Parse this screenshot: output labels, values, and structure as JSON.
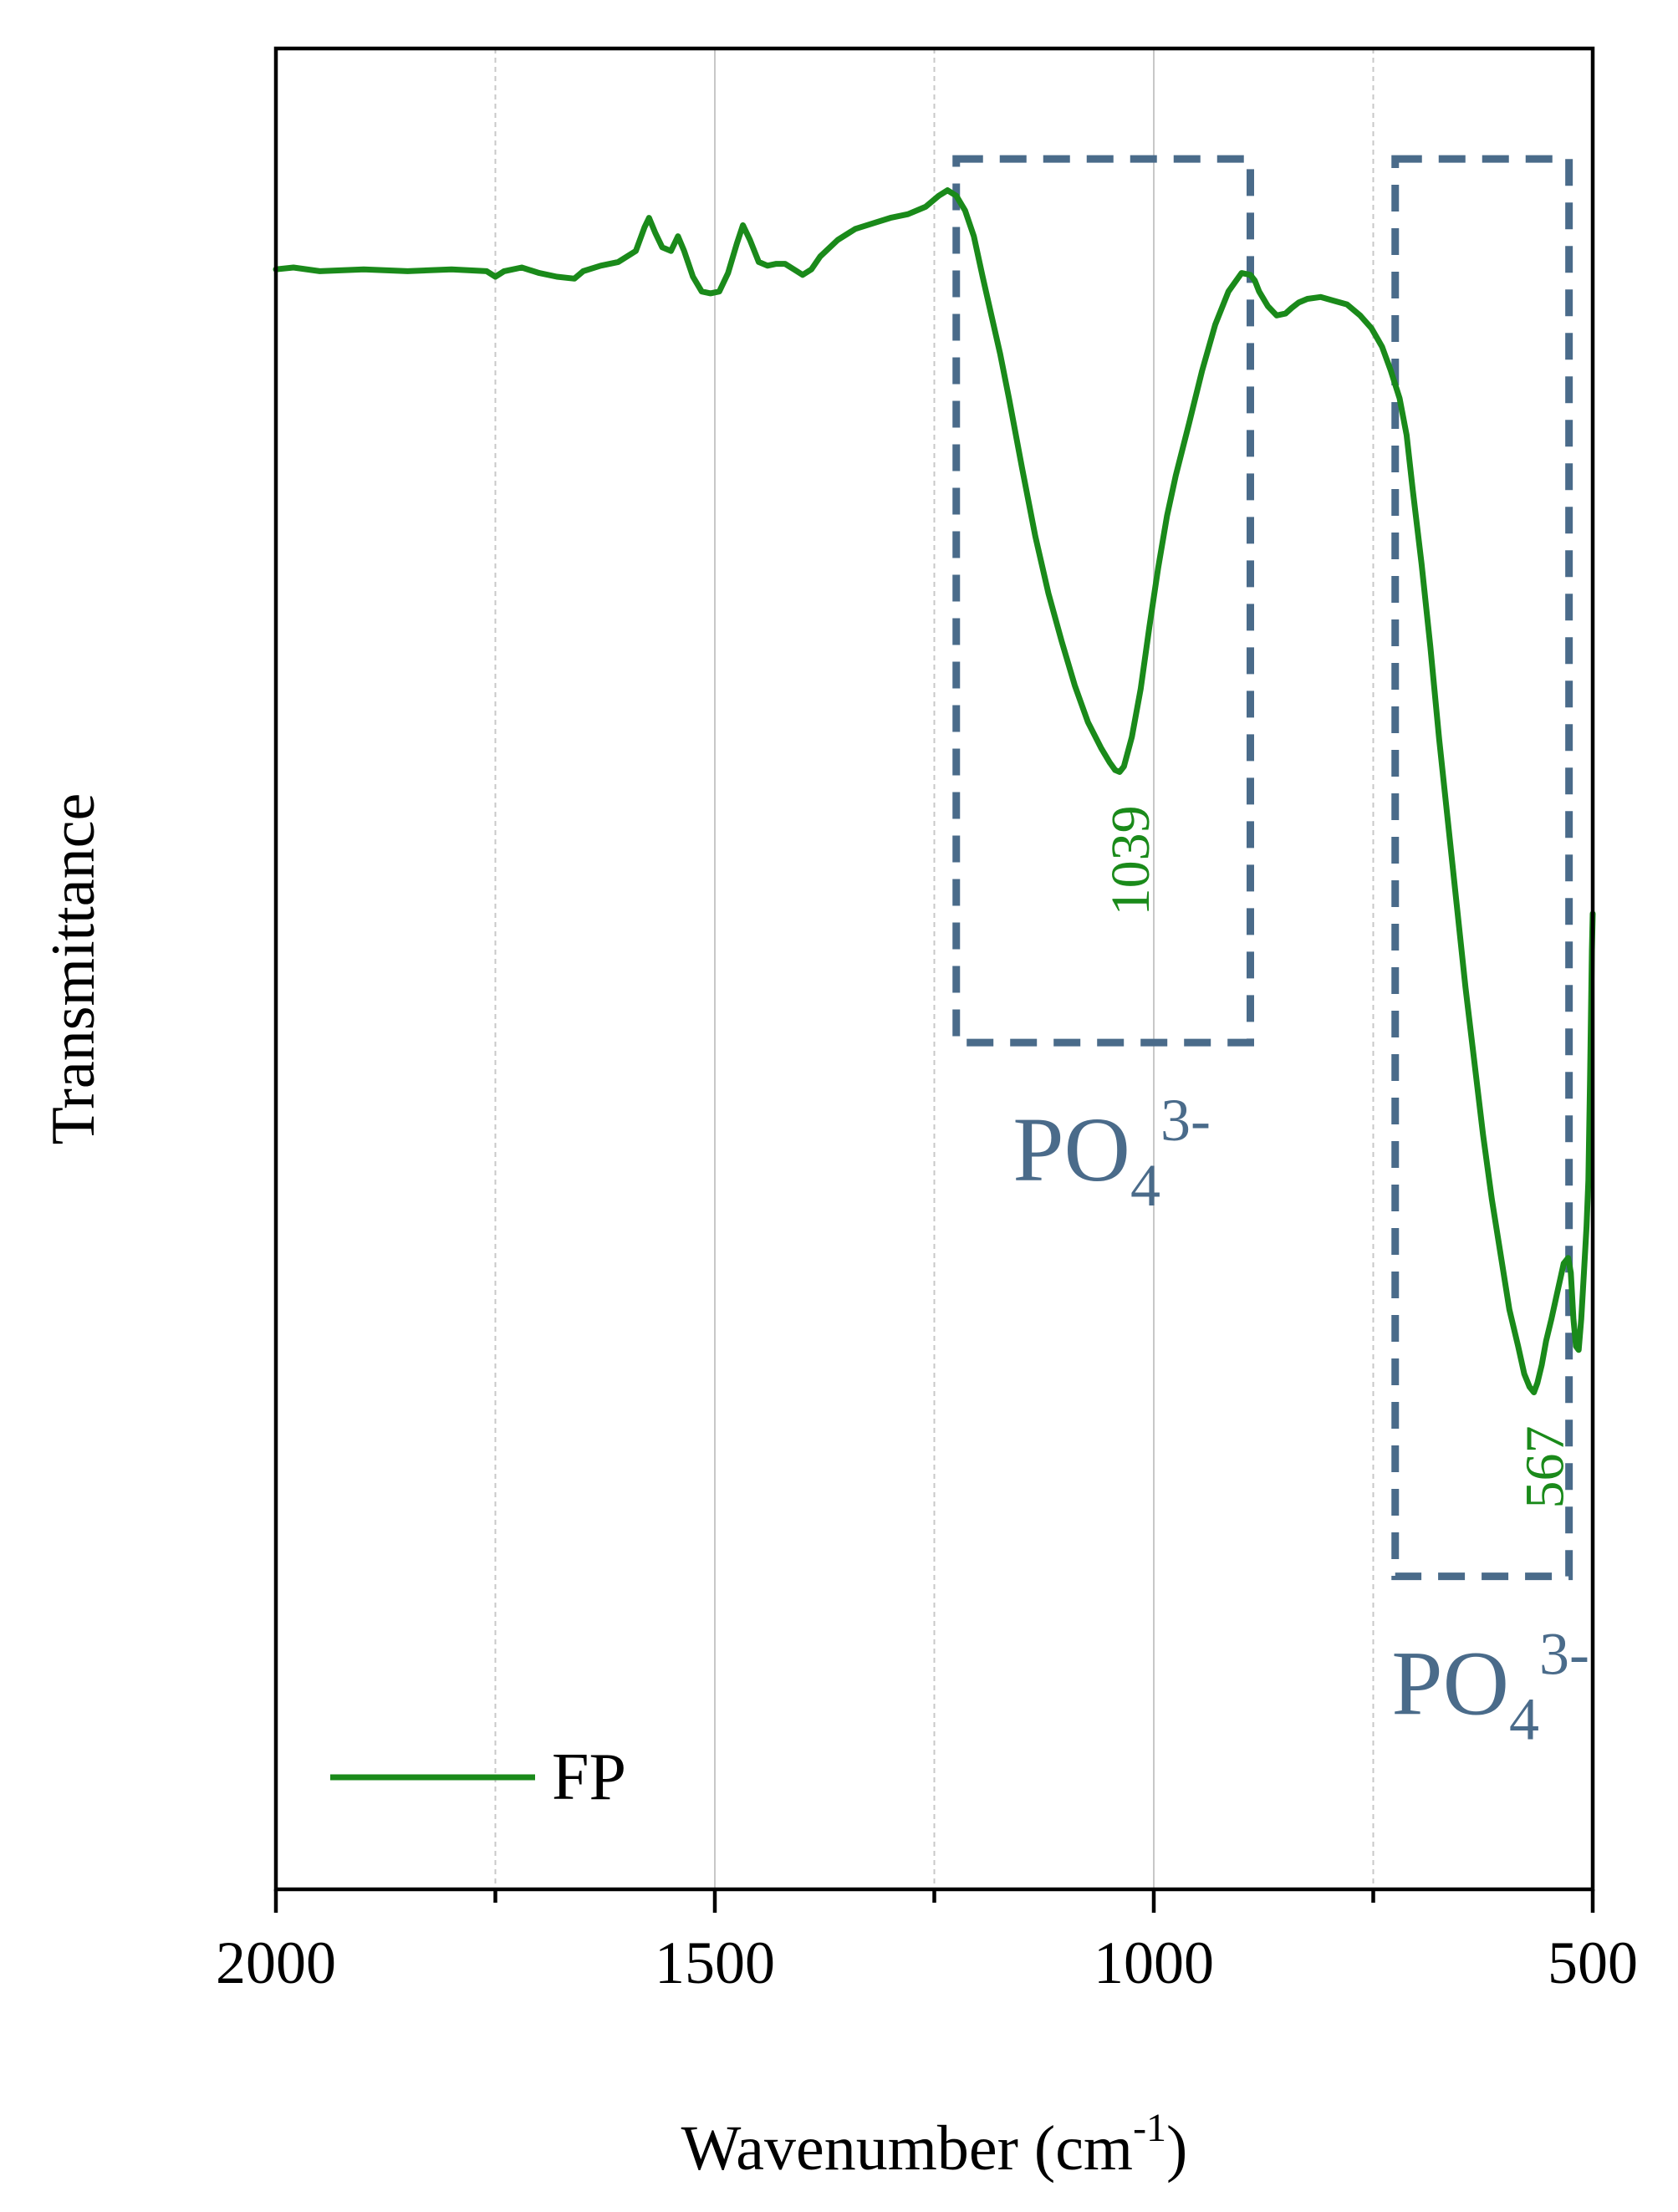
{
  "chart_data": {
    "type": "line",
    "title": "",
    "xlabel": "Wavenumber (cm",
    "xlabel_sup": "-1",
    "xlabel_close": ")",
    "ylabel": "Transmittance",
    "xlim": [
      2000,
      500
    ],
    "x_reversed": true,
    "ylim": [
      0,
      100
    ],
    "y_ticks_shown": false,
    "x_ticks": [
      2000,
      1500,
      1000,
      500
    ],
    "x_tick_labels": [
      "2000",
      "1500",
      "1000",
      "500"
    ],
    "x_minor_ticks": [
      1750,
      1250,
      750
    ],
    "grid": "vertical",
    "legend": {
      "position": "bottom-left",
      "entries": [
        "FP"
      ]
    },
    "series": [
      {
        "name": "FP",
        "color": "#1a8a1a",
        "x": [
          2000,
          1980,
          1950,
          1900,
          1850,
          1800,
          1760,
          1750,
          1740,
          1720,
          1700,
          1680,
          1660,
          1650,
          1630,
          1610,
          1590,
          1580,
          1575,
          1568,
          1560,
          1550,
          1542,
          1535,
          1525,
          1515,
          1505,
          1495,
          1485,
          1475,
          1468,
          1460,
          1450,
          1440,
          1430,
          1420,
          1410,
          1400,
          1390,
          1380,
          1360,
          1340,
          1320,
          1300,
          1280,
          1260,
          1245,
          1235,
          1225,
          1215,
          1205,
          1195,
          1185,
          1175,
          1165,
          1150,
          1135,
          1120,
          1105,
          1090,
          1075,
          1060,
          1050,
          1044,
          1039,
          1034,
          1025,
          1015,
          1005,
          995,
          985,
          975,
          960,
          945,
          930,
          915,
          900,
          890,
          885,
          880,
          870,
          860,
          850,
          843,
          835,
          825,
          810,
          795,
          780,
          765,
          752,
          740,
          730,
          720,
          712,
          705,
          695,
          685,
          675,
          665,
          655,
          645,
          635,
          625,
          615,
          605,
          595,
          585,
          578,
          572,
          567,
          563,
          558,
          553,
          547,
          540,
          533,
          528,
          525,
          522,
          519,
          516,
          513,
          510,
          507,
          505,
          503,
          501,
          500
        ],
        "y": [
          88.0,
          88.1,
          87.9,
          88.0,
          87.9,
          88.0,
          87.9,
          87.6,
          87.9,
          88.1,
          87.8,
          87.6,
          87.5,
          87.9,
          88.2,
          88.4,
          89.0,
          90.3,
          90.8,
          90.0,
          89.2,
          89.0,
          89.8,
          89.0,
          87.6,
          86.8,
          86.7,
          86.8,
          87.8,
          89.4,
          90.4,
          89.6,
          88.4,
          88.2,
          88.3,
          88.3,
          88.0,
          87.7,
          88.0,
          88.7,
          89.6,
          90.2,
          90.5,
          90.8,
          91.0,
          91.4,
          92.0,
          92.3,
          92.0,
          91.2,
          89.8,
          87.6,
          85.5,
          83.4,
          81.0,
          77.2,
          73.5,
          70.4,
          67.8,
          65.4,
          63.4,
          62.0,
          61.2,
          60.8,
          60.7,
          61.0,
          62.6,
          65.2,
          68.6,
          71.8,
          74.6,
          76.8,
          79.6,
          82.5,
          85.0,
          86.8,
          87.8,
          87.7,
          87.4,
          86.8,
          86.0,
          85.5,
          85.6,
          85.9,
          86.2,
          86.4,
          86.5,
          86.3,
          86.1,
          85.5,
          84.8,
          83.8,
          82.5,
          81.0,
          79.0,
          76.0,
          72.0,
          67.5,
          62.5,
          58.0,
          53.5,
          49.0,
          45.0,
          41.0,
          37.5,
          34.5,
          31.5,
          29.5,
          28.0,
          27.3,
          27.0,
          27.5,
          28.5,
          29.8,
          31.0,
          32.5,
          34.0,
          34.3,
          33.5,
          31.0,
          29.5,
          29.3,
          31.0,
          33.5,
          36.0,
          38.5,
          44.0,
          51.0,
          53.0
        ]
      }
    ],
    "annotations": [
      {
        "text": "1039",
        "x": 1039,
        "color": "#1a8a1a",
        "rotation": -90
      },
      {
        "text": "567",
        "x": 567,
        "color": "#1a8a1a",
        "rotation": -90
      }
    ],
    "regions": [
      {
        "label": "PO",
        "sub": "4",
        "sup": "3-",
        "x_from": 1225,
        "x_to": 890,
        "y_from": 46,
        "y_to": 94,
        "color": "#4a6b8a"
      },
      {
        "label": "PO",
        "sub": "4",
        "sup": "3-",
        "x_from": 725,
        "x_to": 527,
        "y_from": 17,
        "y_to": 94,
        "color": "#4a6b8a"
      }
    ]
  }
}
